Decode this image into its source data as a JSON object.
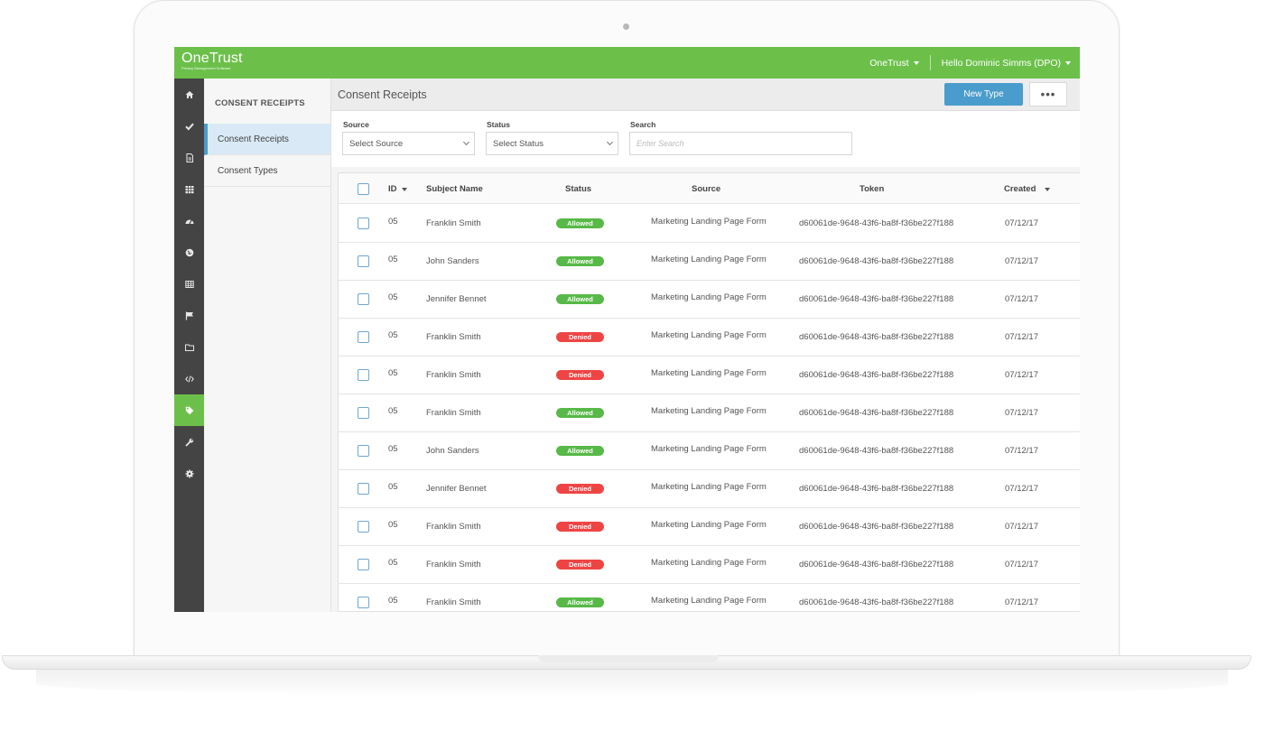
{
  "app": {
    "brand": "OneTrust",
    "brand_sub": "Privacy Management Software",
    "org_menu": "OneTrust",
    "user_menu": "Hello Dominic Simms (DPO)"
  },
  "icon_sidebar": {
    "items": [
      {
        "icon": "home-icon"
      },
      {
        "icon": "check-icon"
      },
      {
        "icon": "document-icon"
      },
      {
        "icon": "grid-icon"
      },
      {
        "icon": "dashboard-icon"
      },
      {
        "icon": "globe-icon"
      },
      {
        "icon": "table-icon"
      },
      {
        "icon": "flag-icon"
      },
      {
        "icon": "folder-icon"
      },
      {
        "icon": "code-icon"
      },
      {
        "icon": "tag-icon",
        "active": true
      },
      {
        "icon": "wrench-icon"
      },
      {
        "icon": "gear-icon"
      }
    ]
  },
  "subnav": {
    "title": "CONSENT RECEIPTS",
    "items": [
      {
        "label": "Consent Receipts",
        "active": true
      },
      {
        "label": "Consent Types",
        "active": false
      }
    ]
  },
  "page": {
    "title": "Consent Receipts",
    "new_button": "New Type",
    "more_button": "•••"
  },
  "filters": {
    "source_label": "Source",
    "source_value": "Select Source",
    "status_label": "Status",
    "status_value": "Select Status",
    "search_label": "Search",
    "search_placeholder": "Enter Search"
  },
  "table": {
    "columns": {
      "id": "ID",
      "subject": "Subject Name",
      "status": "Status",
      "source": "Source",
      "token": "Token",
      "created": "Created"
    },
    "rows": [
      {
        "id": "05",
        "subject": "Franklin Smith",
        "status": "Allowed",
        "source": "Marketing Landing Page Form",
        "token": "d60061de-9648-43f6-ba8f-f36be227f188",
        "created": "07/12/17"
      },
      {
        "id": "05",
        "subject": "John Sanders",
        "status": "Allowed",
        "source": "Marketing Landing Page Form",
        "token": "d60061de-9648-43f6-ba8f-f36be227f188",
        "created": "07/12/17"
      },
      {
        "id": "05",
        "subject": "Jennifer Bennet",
        "status": "Allowed",
        "source": "Marketing Landing Page Form",
        "token": "d60061de-9648-43f6-ba8f-f36be227f188",
        "created": "07/12/17"
      },
      {
        "id": "05",
        "subject": "Franklin Smith",
        "status": "Denied",
        "source": "Marketing Landing Page Form",
        "token": "d60061de-9648-43f6-ba8f-f36be227f188",
        "created": "07/12/17"
      },
      {
        "id": "05",
        "subject": "Franklin Smith",
        "status": "Denied",
        "source": "Marketing Landing Page Form",
        "token": "d60061de-9648-43f6-ba8f-f36be227f188",
        "created": "07/12/17"
      },
      {
        "id": "05",
        "subject": "Franklin Smith",
        "status": "Allowed",
        "source": "Marketing Landing Page Form",
        "token": "d60061de-9648-43f6-ba8f-f36be227f188",
        "created": "07/12/17"
      },
      {
        "id": "05",
        "subject": "John Sanders",
        "status": "Allowed",
        "source": "Marketing Landing Page Form",
        "token": "d60061de-9648-43f6-ba8f-f36be227f188",
        "created": "07/12/17"
      },
      {
        "id": "05",
        "subject": "Jennifer Bennet",
        "status": "Denied",
        "source": "Marketing Landing Page Form",
        "token": "d60061de-9648-43f6-ba8f-f36be227f188",
        "created": "07/12/17"
      },
      {
        "id": "05",
        "subject": "Franklin Smith",
        "status": "Denied",
        "source": "Marketing Landing Page Form",
        "token": "d60061de-9648-43f6-ba8f-f36be227f188",
        "created": "07/12/17"
      },
      {
        "id": "05",
        "subject": "Franklin Smith",
        "status": "Denied",
        "source": "Marketing Landing Page Form",
        "token": "d60061de-9648-43f6-ba8f-f36be227f188",
        "created": "07/12/17"
      },
      {
        "id": "05",
        "subject": "Franklin Smith",
        "status": "Allowed",
        "source": "Marketing Landing Page Form",
        "token": "d60061de-9648-43f6-ba8f-f36be227f188",
        "created": "07/12/17"
      }
    ]
  },
  "colors": {
    "brand_green": "#6cc04a",
    "sidebar_dark": "#444444",
    "primary_blue": "#4a9ccc",
    "allowed": "#57b947",
    "denied": "#ef4444"
  }
}
